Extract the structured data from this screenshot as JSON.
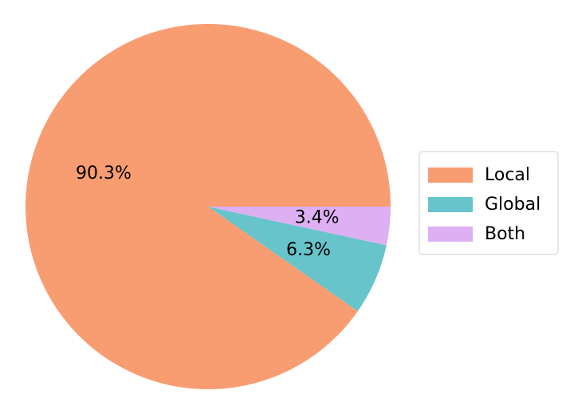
{
  "chart_data": {
    "type": "pie",
    "categories": [
      "Local",
      "Global",
      "Both"
    ],
    "values": [
      90.3,
      6.3,
      3.4
    ],
    "value_labels": [
      "90.3%",
      "6.3%",
      "3.4%"
    ],
    "colors": [
      "#f89d72",
      "#67c4ca",
      "#dcb0f2"
    ],
    "legend": "right"
  }
}
